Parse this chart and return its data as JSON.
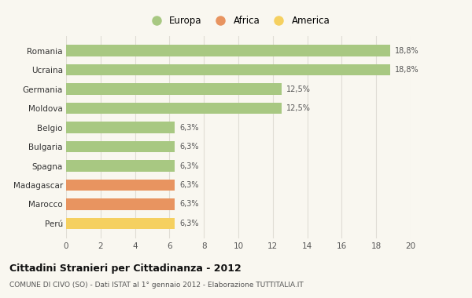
{
  "categories": [
    "Romania",
    "Ucraina",
    "Germania",
    "Moldova",
    "Belgio",
    "Bulgaria",
    "Spagna",
    "Madagascar",
    "Marocco",
    "Perú"
  ],
  "values": [
    18.8,
    18.8,
    12.5,
    12.5,
    6.3,
    6.3,
    6.3,
    6.3,
    6.3,
    6.3
  ],
  "labels": [
    "18,8%",
    "18,8%",
    "12,5%",
    "12,5%",
    "6,3%",
    "6,3%",
    "6,3%",
    "6,3%",
    "6,3%",
    "6,3%"
  ],
  "colors": [
    "#a8c882",
    "#a8c882",
    "#a8c882",
    "#a8c882",
    "#a8c882",
    "#a8c882",
    "#a8c882",
    "#e89460",
    "#e89460",
    "#f5d060"
  ],
  "legend": [
    {
      "label": "Europa",
      "color": "#a8c882"
    },
    {
      "label": "Africa",
      "color": "#e89460"
    },
    {
      "label": "America",
      "color": "#f5d060"
    }
  ],
  "title": "Cittadini Stranieri per Cittadinanza - 2012",
  "subtitle": "COMUNE DI CIVO (SO) - Dati ISTAT al 1° gennaio 2012 - Elaborazione TUTTITALIA.IT",
  "xlim": [
    0,
    20
  ],
  "xticks": [
    0,
    2,
    4,
    6,
    8,
    10,
    12,
    14,
    16,
    18,
    20
  ],
  "background_color": "#f9f7f0",
  "grid_color": "#e0ddd5",
  "bar_height": 0.6
}
